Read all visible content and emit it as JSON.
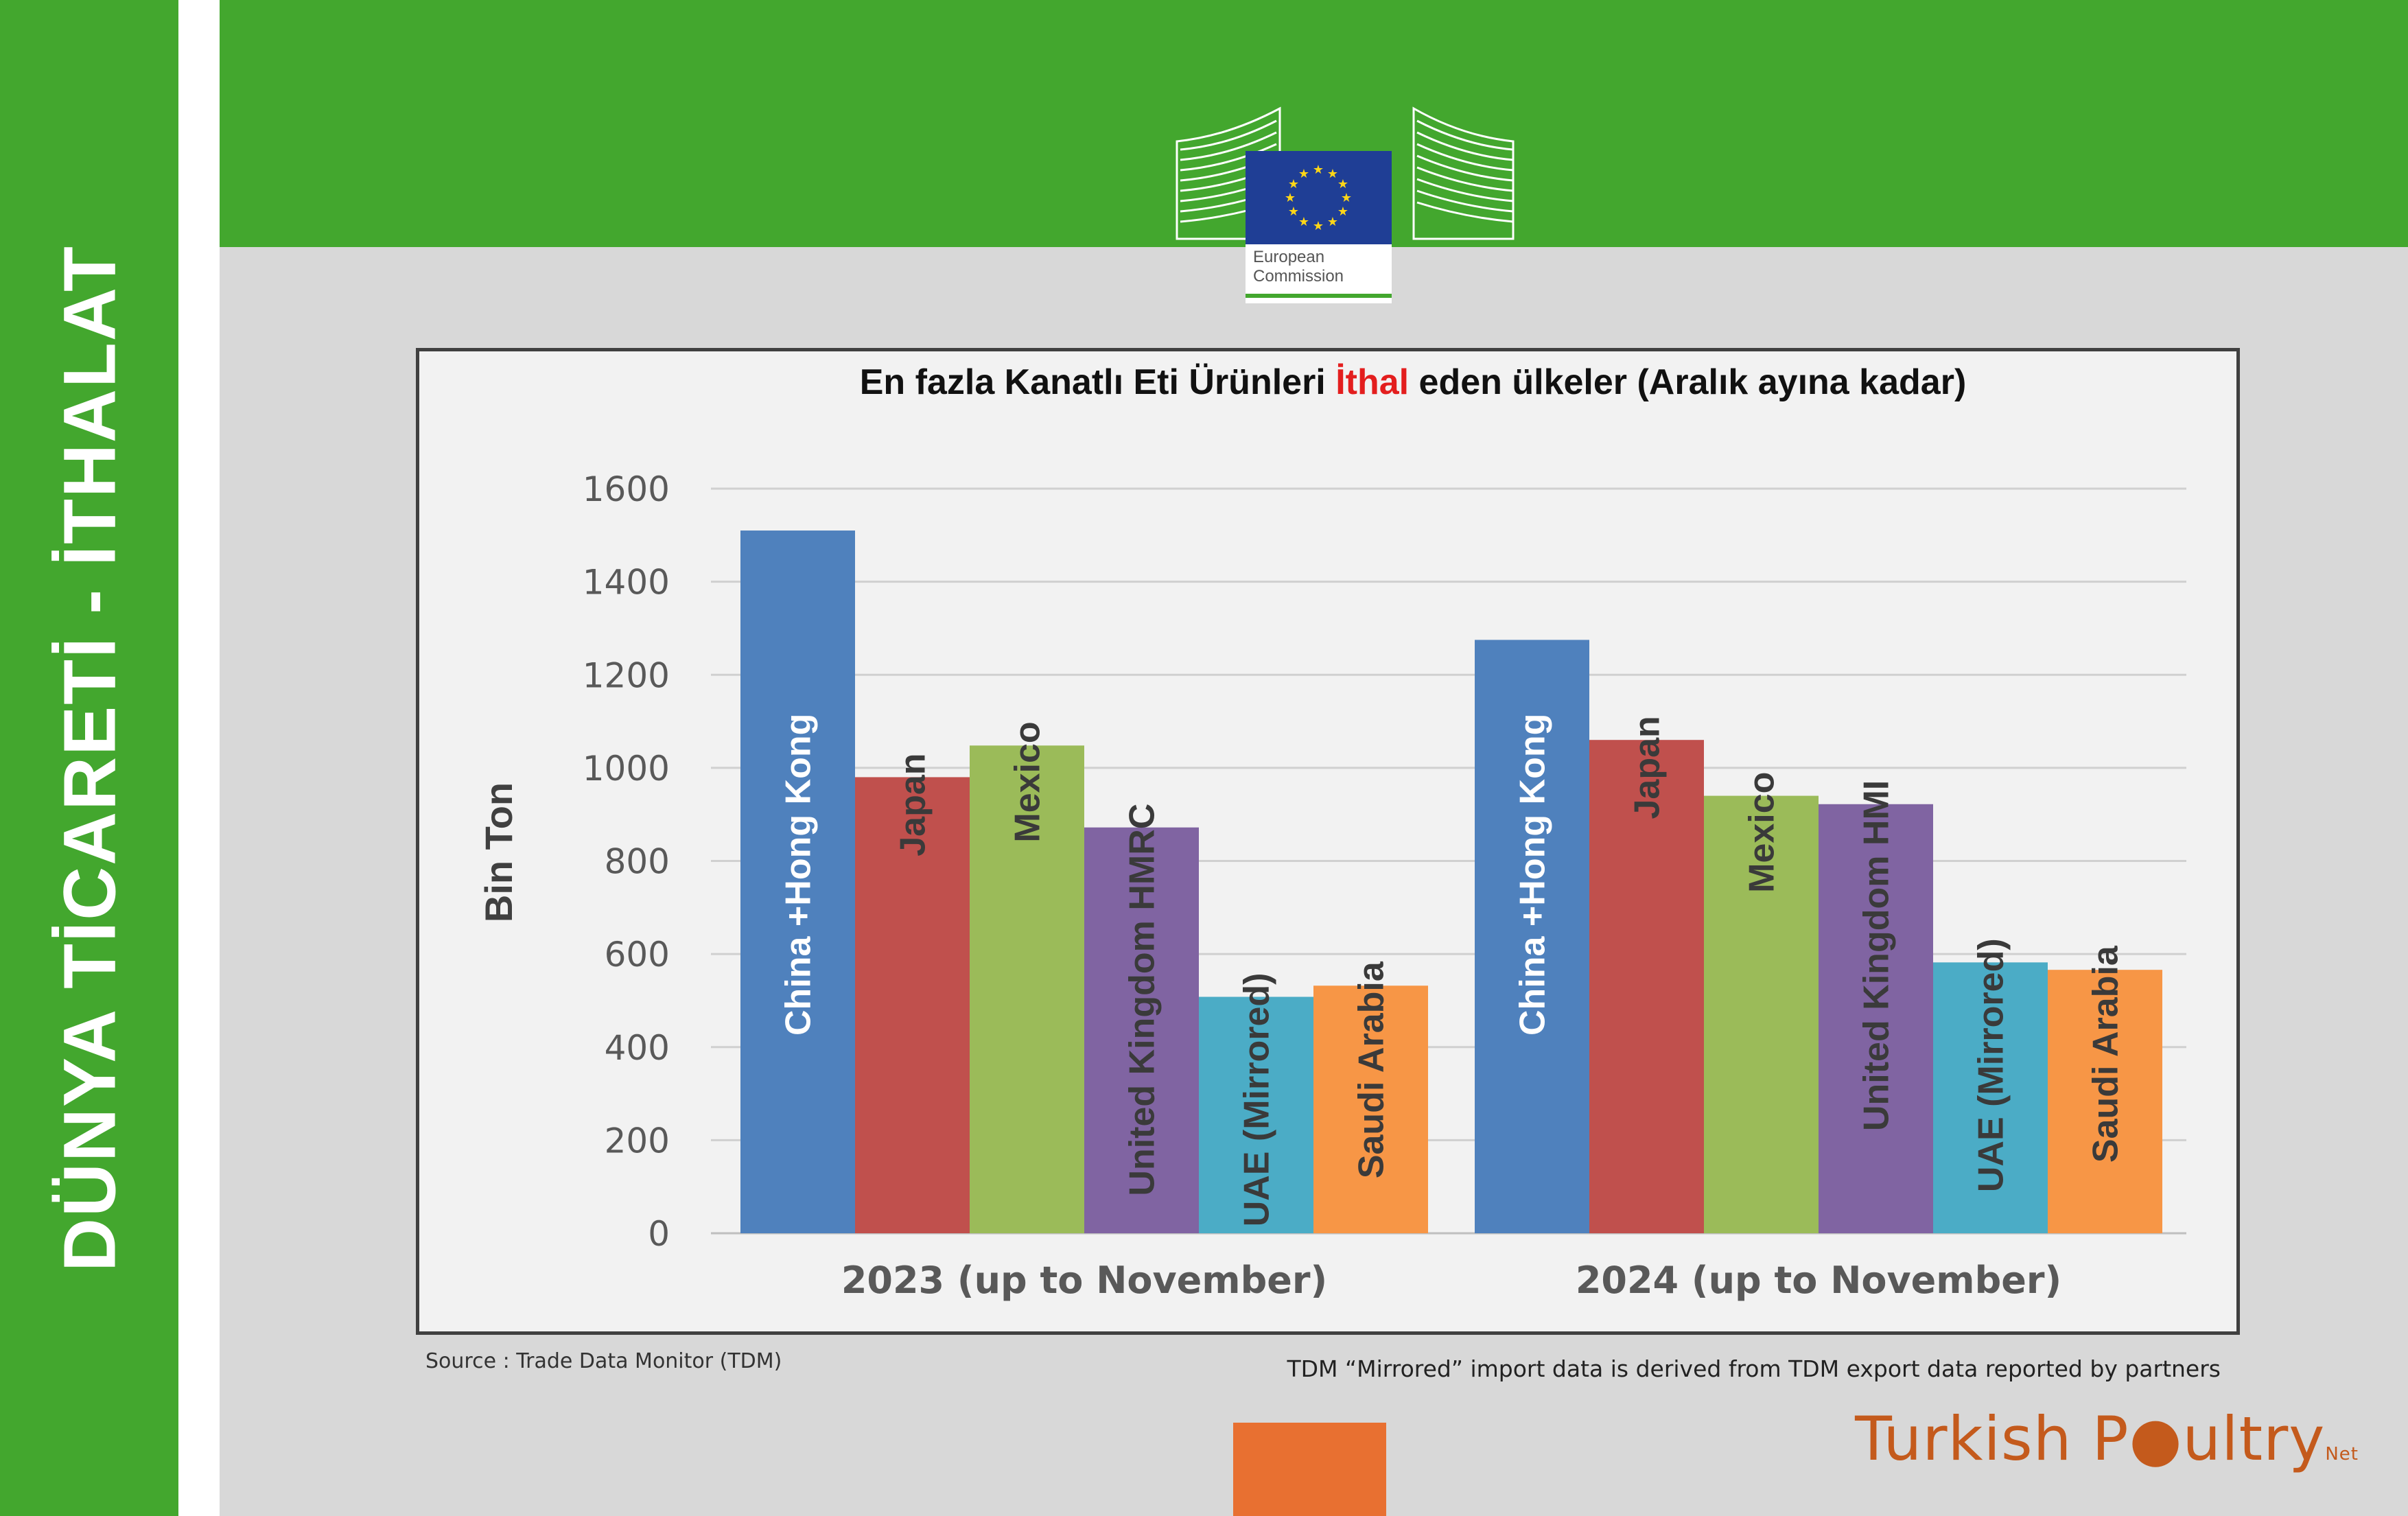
{
  "side_title": "DÜNYA TİCARETİ - İTHALAT",
  "logo": {
    "line1": "European",
    "line2": "Commission"
  },
  "chart_data": {
    "type": "bar",
    "title_parts": [
      "En fazla Kanatlı Eti Ürünleri ",
      "İthal",
      " eden ülkeler (Aralık ayına kadar)"
    ],
    "ylabel": "Bin Ton",
    "ylim": [
      0,
      1600
    ],
    "yticks": [
      0,
      200,
      400,
      600,
      800,
      1000,
      1200,
      1400,
      1600
    ],
    "grid": true,
    "groups": [
      {
        "label": "2023 (up to November)",
        "bars": [
          {
            "name": "China +Hong Kong",
            "value": 1510,
            "label_inside": true
          },
          {
            "name": "Japan",
            "value": 980
          },
          {
            "name": "Mexico",
            "value": 1048
          },
          {
            "name": "United Kingdom HMRC",
            "value": 872
          },
          {
            "name": "UAE (Mirrored)",
            "value": 508
          },
          {
            "name": "Saudi Arabia",
            "value": 532
          }
        ]
      },
      {
        "label": "2024 (up to November)",
        "bars": [
          {
            "name": "China +Hong Kong",
            "value": 1275,
            "label_inside": true
          },
          {
            "name": "Japan",
            "value": 1060
          },
          {
            "name": "Mexico",
            "value": 940
          },
          {
            "name": "United Kingdom HMI",
            "value": 922
          },
          {
            "name": "UAE (Mirrored)",
            "value": 582
          },
          {
            "name": "Saudi Arabia",
            "value": 566
          }
        ]
      }
    ],
    "colors": [
      "#4f81bd",
      "#c0504d",
      "#9bbb59",
      "#8064a2",
      "#4bacc6",
      "#f79646"
    ],
    "title_highlight_color": "#e31e1e"
  },
  "source_note": "Source : Trade Data Monitor (TDM)",
  "mirror_note": "TDM “Mirrored” import data is derived from TDM export data reported by partners",
  "brand": {
    "part1": "Turkish P",
    "part2": "ultry",
    "suffix": "Net"
  }
}
